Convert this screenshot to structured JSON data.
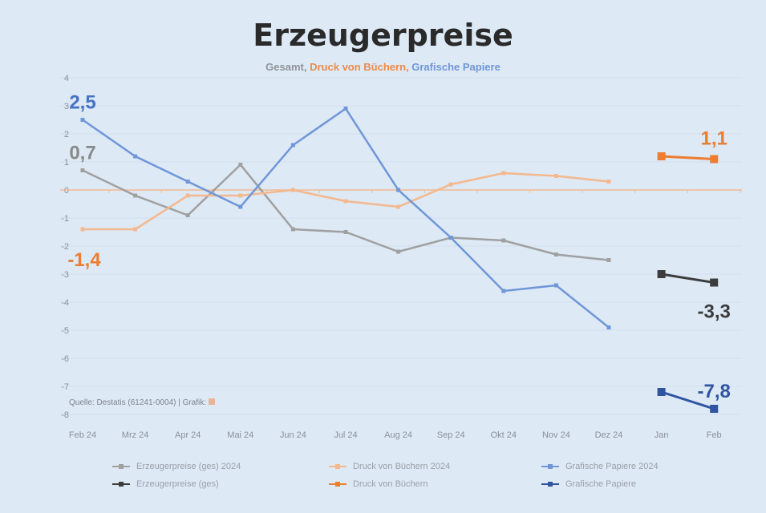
{
  "title": "Erzeugerpreise",
  "subtitle": {
    "a": "Gesamt,",
    "b": "Druck von Büchern,",
    "c": "Grafische Papiere"
  },
  "source": "Quelle: Destatis (61241-0004) | Grafik: ",
  "colors": {
    "gray": "#9a9a9a",
    "gray_dark": "#3c3c3c",
    "orange": "#f4b88e",
    "orange_dark": "#ed7d31",
    "blue": "#6f96d8",
    "blue_dark": "#2f54a0"
  },
  "chart_data": {
    "type": "line",
    "title": "Erzeugerpreise",
    "categories": [
      "Feb 24",
      "Mrz 24",
      "Apr 24",
      "Mai 24",
      "Jun 24",
      "Jul 24",
      "Aug 24",
      "Sep 24",
      "Okt 24",
      "Nov 24",
      "Dez 24",
      "Jan",
      "Feb"
    ],
    "yticks": [
      "4",
      "3",
      "2",
      "1",
      "0",
      "-1",
      "-2",
      "-3",
      "-4",
      "-5",
      "-6",
      "-7",
      "-8"
    ],
    "ylim": [
      -8,
      4
    ],
    "series": [
      {
        "name": "Erzeugerpreise (ges) 2024",
        "color": "#a0a0a0",
        "values": [
          0.7,
          -0.2,
          -0.9,
          0.9,
          -1.4,
          -1.5,
          -2.2,
          -1.7,
          -1.8,
          -2.3,
          -2.5,
          null,
          null
        ]
      },
      {
        "name": "Druck von Büchern 2024",
        "color": "#f4b88e",
        "values": [
          -1.4,
          -1.4,
          -0.2,
          -0.2,
          0.0,
          -0.4,
          -0.6,
          0.2,
          0.6,
          0.5,
          0.3,
          null,
          null
        ]
      },
      {
        "name": "Grafische Papiere 2024",
        "color": "#6f96d8",
        "values": [
          2.5,
          1.2,
          0.3,
          -0.6,
          1.6,
          2.9,
          0.0,
          -1.7,
          -3.6,
          -3.4,
          -4.9,
          null,
          null
        ]
      },
      {
        "name": "Erzeugerpreise (ges)",
        "color": "#3c3c3c",
        "values": [
          null,
          null,
          null,
          null,
          null,
          null,
          null,
          null,
          null,
          null,
          null,
          -3.0,
          -3.3
        ]
      },
      {
        "name": "Druck von Büchern",
        "color": "#ed7d31",
        "values": [
          null,
          null,
          null,
          null,
          null,
          null,
          null,
          null,
          null,
          null,
          null,
          1.2,
          1.1
        ]
      },
      {
        "name": "Grafische Papiere",
        "color": "#2f54a0",
        "values": [
          null,
          null,
          null,
          null,
          null,
          null,
          null,
          null,
          null,
          null,
          null,
          -7.2,
          -7.8
        ]
      }
    ],
    "data_labels": [
      {
        "text": "2,5",
        "series": 2,
        "index": 0,
        "color": "#4472c4"
      },
      {
        "text": "0,7",
        "series": 0,
        "index": 0,
        "color": "#8a8a8a"
      },
      {
        "text": "-1,4",
        "series": 1,
        "index": 0,
        "color": "#ed7d31"
      },
      {
        "text": "1,1",
        "series": 4,
        "index": 12,
        "color": "#ed7d31"
      },
      {
        "text": "-3,3",
        "series": 3,
        "index": 12,
        "color": "#3c3c3c"
      },
      {
        "text": "-7,8",
        "series": 5,
        "index": 12,
        "color": "#2f54a0"
      }
    ],
    "legend": "bottom"
  }
}
